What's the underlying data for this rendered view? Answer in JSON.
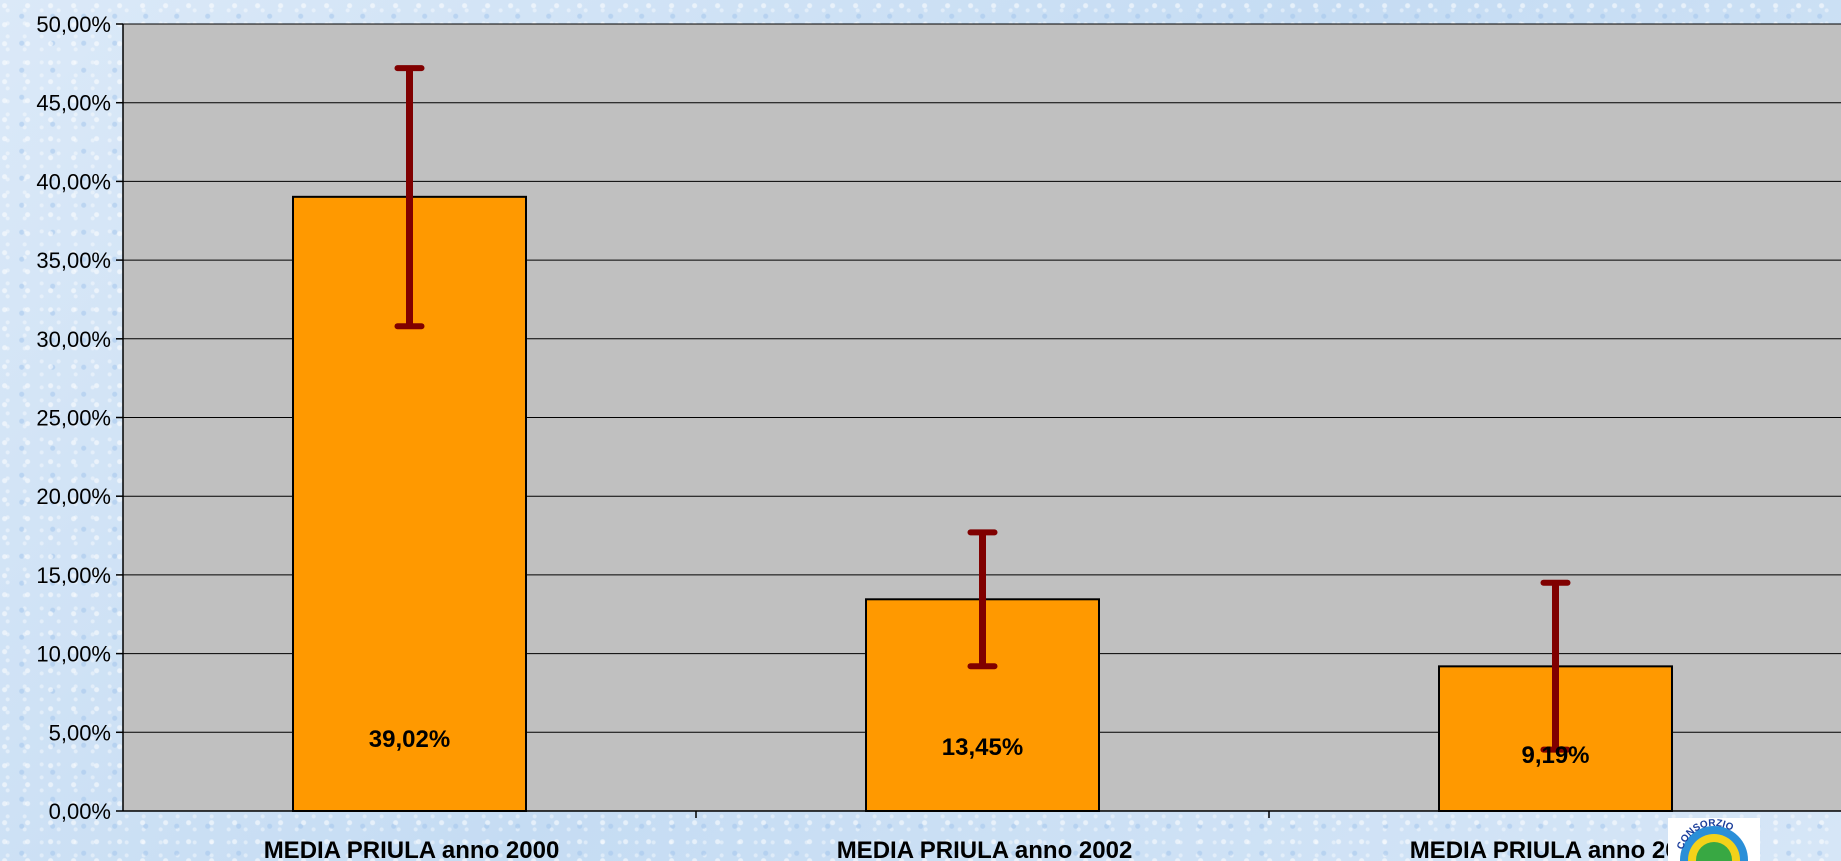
{
  "chart_data": {
    "type": "bar",
    "categories": [
      "MEDIA PRIULA anno 2000",
      "MEDIA PRIULA anno 2002",
      "MEDIA PRIULA anno 2003"
    ],
    "values": [
      39.02,
      13.45,
      9.19
    ],
    "value_labels": [
      "39,02%",
      "13,45%",
      "9,19%"
    ],
    "error_high": [
      47.2,
      17.7,
      14.5
    ],
    "error_low": [
      30.8,
      9.2,
      3.9
    ],
    "ylim": [
      0,
      50
    ],
    "y_ticks": [
      0,
      5,
      10,
      15,
      20,
      25,
      30,
      35,
      40,
      45,
      50
    ],
    "y_tick_labels": [
      "0,00%",
      "5,00%",
      "10,00%",
      "15,00%",
      "20,00%",
      "25,00%",
      "30,00%",
      "35,00%",
      "40,00%",
      "45,00%",
      "50,00%"
    ],
    "grid": true,
    "colors": {
      "bar_fill": "#ff9900",
      "bar_stroke": "#000000",
      "error_bar": "#800000",
      "plot_bg": "#c0c0c0",
      "gridline": "#000000"
    }
  },
  "logo": {
    "icon": "consorzio-logo",
    "text": "CONSORZIO"
  }
}
